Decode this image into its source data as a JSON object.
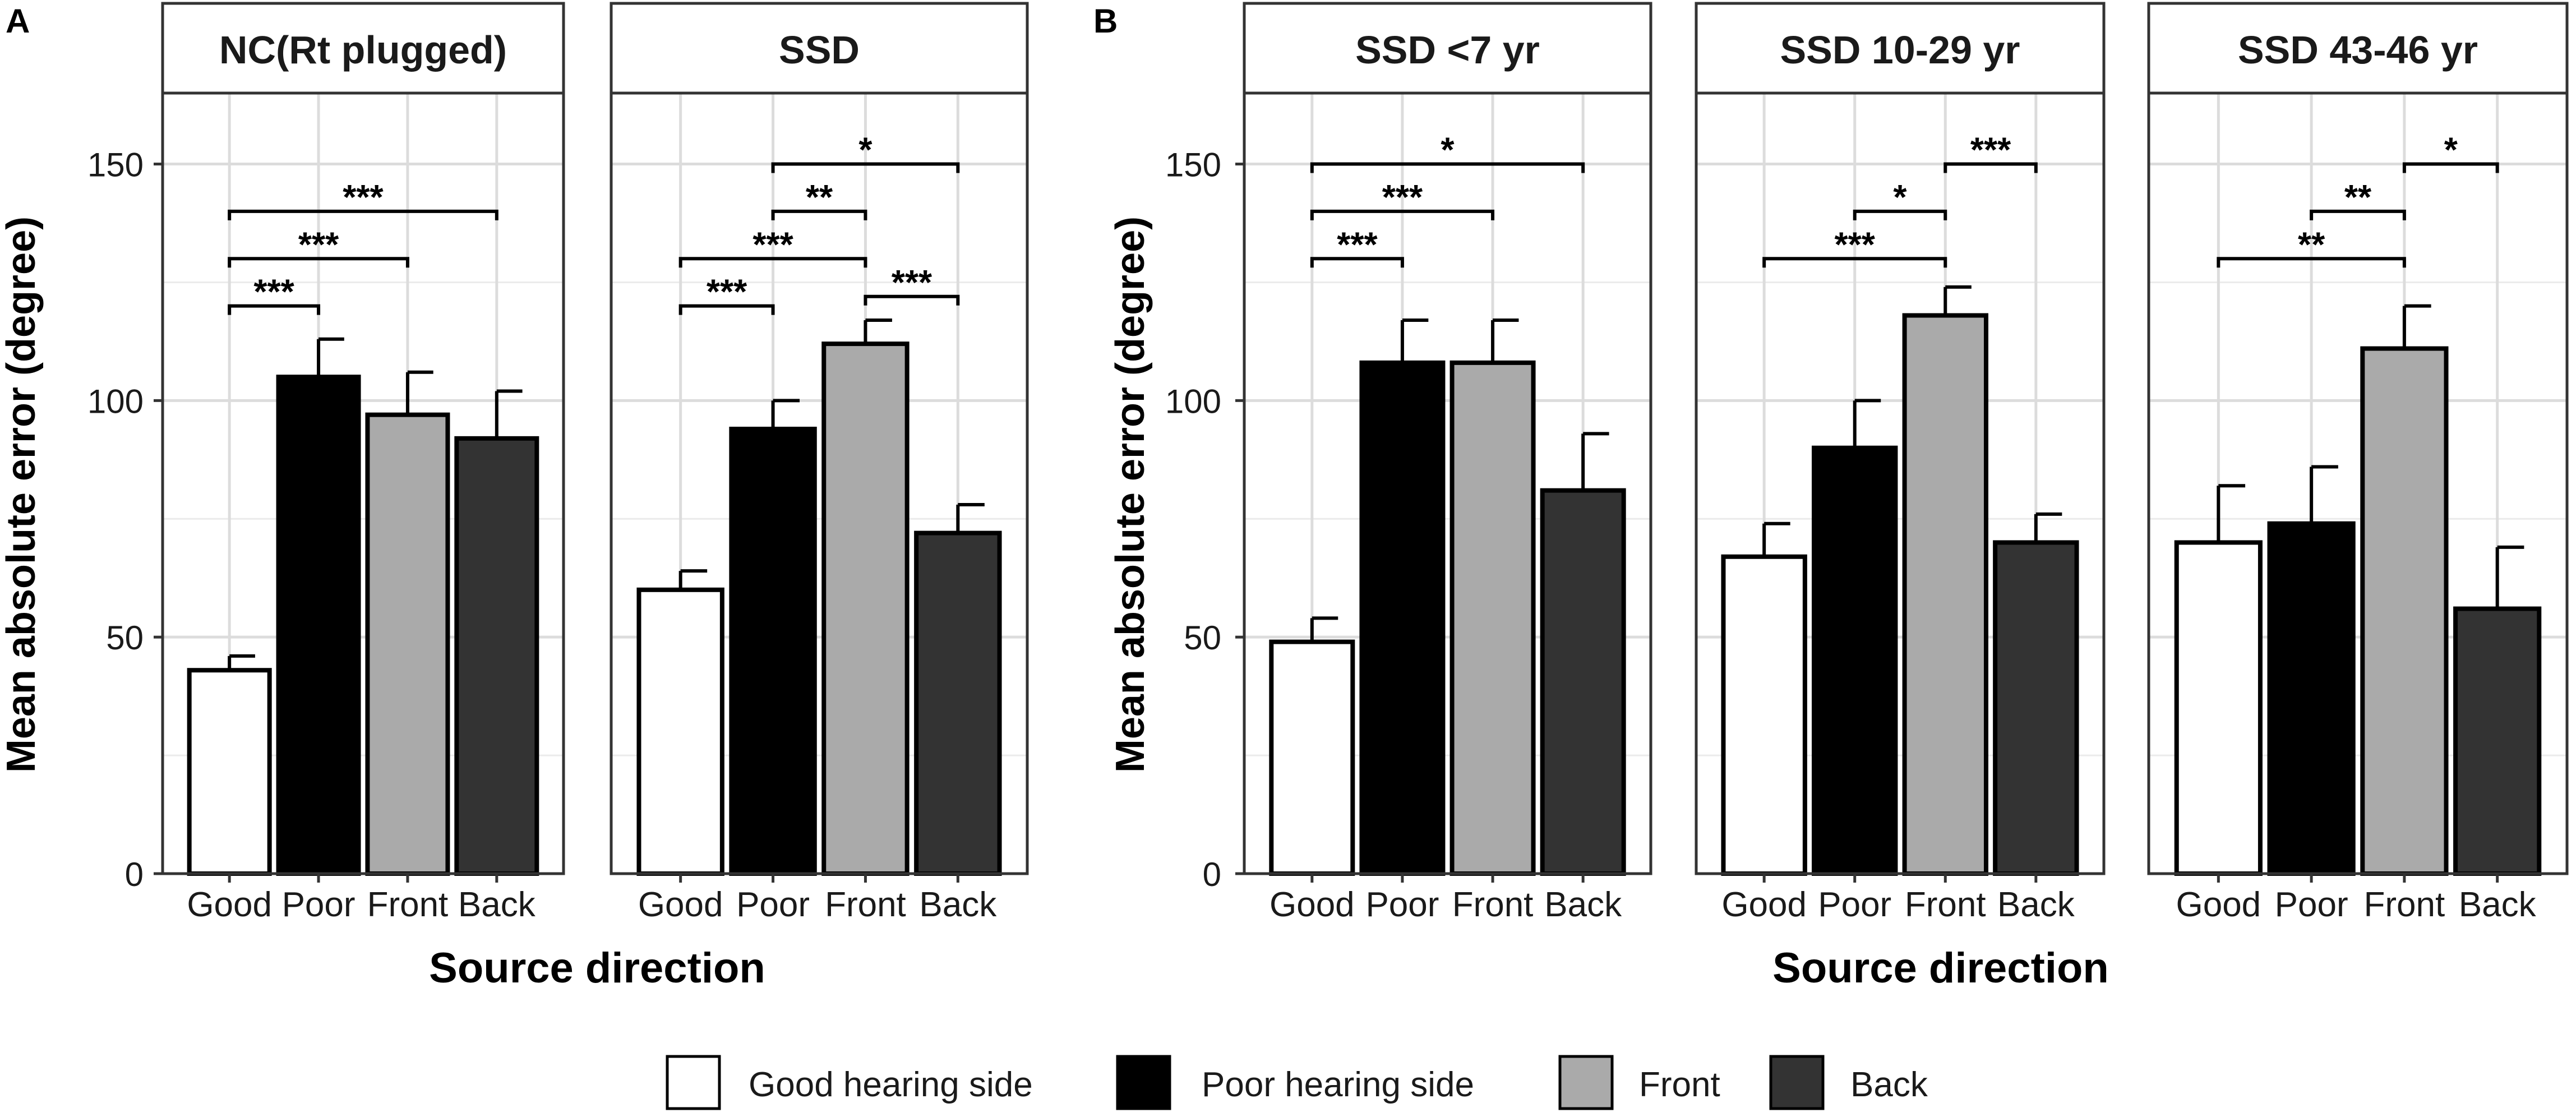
{
  "figure": {
    "panel_letters": [
      "A",
      "B"
    ],
    "ylabel": "Mean absolute error (degree)",
    "xlabel": "Source direction"
  },
  "legend": {
    "items": [
      {
        "label": "Good hearing side",
        "color": "#ffffff"
      },
      {
        "label": "Poor hearing side",
        "color": "#000000"
      },
      {
        "label": "Front",
        "color": "#aaaaaa"
      },
      {
        "label": "Back",
        "color": "#333333"
      }
    ]
  },
  "chart_data": [
    {
      "type": "bar",
      "title": "NC(Rt plugged)",
      "categories": [
        "Good",
        "Poor",
        "Front",
        "Back"
      ],
      "values": [
        43,
        105,
        97,
        92
      ],
      "errors": [
        3,
        8,
        9,
        10
      ],
      "ylim": [
        0,
        165
      ],
      "yticks": [
        0,
        50,
        100,
        150
      ],
      "significance": [
        {
          "from": "Good",
          "to": "Poor",
          "label": "***",
          "y": 120
        },
        {
          "from": "Good",
          "to": "Front",
          "label": "***",
          "y": 130
        },
        {
          "from": "Good",
          "to": "Back",
          "label": "***",
          "y": 140
        }
      ]
    },
    {
      "type": "bar",
      "title": "SSD",
      "categories": [
        "Good",
        "Poor",
        "Front",
        "Back"
      ],
      "values": [
        60,
        94,
        112,
        72
      ],
      "errors": [
        4,
        6,
        5,
        6
      ],
      "ylim": [
        0,
        165
      ],
      "yticks": [
        0,
        50,
        100,
        150
      ],
      "significance": [
        {
          "from": "Good",
          "to": "Poor",
          "label": "***",
          "y": 120
        },
        {
          "from": "Front",
          "to": "Back",
          "label": "***",
          "y": 122
        },
        {
          "from": "Good",
          "to": "Front",
          "label": "***",
          "y": 130
        },
        {
          "from": "Poor",
          "to": "Front",
          "label": "**",
          "y": 140
        },
        {
          "from": "Poor",
          "to": "Back",
          "label": "*",
          "y": 150
        }
      ]
    },
    {
      "type": "bar",
      "title": "SSD <7 yr",
      "categories": [
        "Good",
        "Poor",
        "Front",
        "Back"
      ],
      "values": [
        49,
        108,
        108,
        81
      ],
      "errors": [
        5,
        9,
        9,
        12
      ],
      "ylim": [
        0,
        165
      ],
      "yticks": [
        0,
        50,
        100,
        150
      ],
      "significance": [
        {
          "from": "Good",
          "to": "Poor",
          "label": "***",
          "y": 130
        },
        {
          "from": "Good",
          "to": "Front",
          "label": "***",
          "y": 140
        },
        {
          "from": "Good",
          "to": "Back",
          "label": "*",
          "y": 150
        }
      ]
    },
    {
      "type": "bar",
      "title": "SSD 10-29 yr",
      "categories": [
        "Good",
        "Poor",
        "Front",
        "Back"
      ],
      "values": [
        67,
        90,
        118,
        70
      ],
      "errors": [
        7,
        10,
        6,
        6
      ],
      "ylim": [
        0,
        165
      ],
      "yticks": [
        0,
        50,
        100,
        150
      ],
      "significance": [
        {
          "from": "Good",
          "to": "Front",
          "label": "***",
          "y": 130
        },
        {
          "from": "Poor",
          "to": "Front",
          "label": "*",
          "y": 140
        },
        {
          "from": "Front",
          "to": "Back",
          "label": "***",
          "y": 150
        }
      ]
    },
    {
      "type": "bar",
      "title": "SSD 43-46 yr",
      "categories": [
        "Good",
        "Poor",
        "Front",
        "Back"
      ],
      "values": [
        70,
        74,
        111,
        56
      ],
      "errors": [
        12,
        12,
        9,
        13
      ],
      "ylim": [
        0,
        165
      ],
      "yticks": [
        0,
        50,
        100,
        150
      ],
      "significance": [
        {
          "from": "Good",
          "to": "Front",
          "label": "**",
          "y": 130
        },
        {
          "from": "Poor",
          "to": "Front",
          "label": "**",
          "y": 140
        },
        {
          "from": "Front",
          "to": "Back",
          "label": "*",
          "y": 150
        }
      ]
    }
  ]
}
